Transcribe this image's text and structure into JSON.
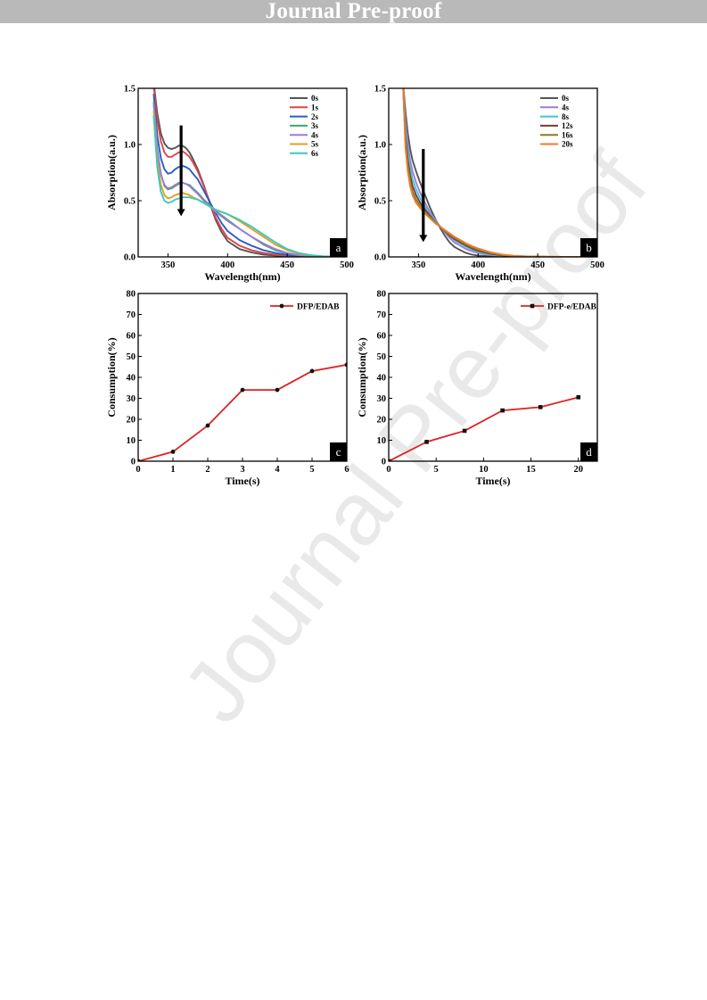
{
  "banner": {
    "title": "Journal Pre-proof"
  },
  "watermark": {
    "text": "Journal Pre-proof"
  },
  "chart_data": [
    {
      "id": "a",
      "panel_label": "a",
      "type": "line",
      "xlabel": "Wavelength(nm)",
      "ylabel": "Absorption(a.u.)",
      "xlim": [
        325,
        500
      ],
      "ylim": [
        0,
        1.5
      ],
      "xticks": [
        350,
        400,
        450,
        500
      ],
      "yticks": [
        0.0,
        0.5,
        1.0,
        1.5
      ],
      "legend": "top-right",
      "arrow": {
        "x": 361,
        "y_from": 1.17,
        "y_to": 0.37
      },
      "series": [
        {
          "name": "0s",
          "color": "#555555",
          "x": [
            338,
            341,
            344,
            347,
            350,
            353,
            356,
            359,
            362,
            365,
            368,
            371,
            375,
            380,
            385,
            390,
            395,
            400,
            410,
            420,
            430,
            440,
            450,
            460,
            470,
            480,
            490,
            500
          ],
          "y": [
            1.55,
            1.28,
            1.1,
            1.01,
            0.97,
            0.96,
            0.97,
            0.99,
            0.99,
            0.97,
            0.93,
            0.87,
            0.78,
            0.64,
            0.48,
            0.33,
            0.22,
            0.14,
            0.07,
            0.04,
            0.02,
            0.012,
            0.006,
            0.003,
            0.002,
            0.001,
            0.0005,
            0.0
          ]
        },
        {
          "name": "1s",
          "color": "#e04545",
          "x": [
            338,
            341,
            344,
            347,
            350,
            353,
            356,
            359,
            362,
            365,
            368,
            371,
            375,
            380,
            385,
            390,
            395,
            400,
            410,
            420,
            430,
            440,
            450,
            460,
            470,
            480,
            490,
            500
          ],
          "y": [
            1.52,
            1.22,
            1.03,
            0.93,
            0.89,
            0.89,
            0.91,
            0.93,
            0.94,
            0.92,
            0.89,
            0.84,
            0.76,
            0.63,
            0.49,
            0.35,
            0.25,
            0.17,
            0.1,
            0.06,
            0.035,
            0.02,
            0.01,
            0.005,
            0.003,
            0.002,
            0.001,
            0.0
          ]
        },
        {
          "name": "2s",
          "color": "#2a5cc8",
          "x": [
            338,
            341,
            344,
            347,
            350,
            353,
            356,
            359,
            362,
            365,
            368,
            371,
            375,
            380,
            385,
            390,
            395,
            400,
            410,
            420,
            430,
            440,
            450,
            460,
            470,
            480,
            490,
            500
          ],
          "y": [
            1.45,
            1.08,
            0.88,
            0.78,
            0.74,
            0.75,
            0.78,
            0.8,
            0.81,
            0.8,
            0.78,
            0.74,
            0.69,
            0.59,
            0.49,
            0.39,
            0.3,
            0.23,
            0.15,
            0.1,
            0.06,
            0.035,
            0.018,
            0.008,
            0.004,
            0.002,
            0.001,
            0.0
          ]
        },
        {
          "name": "3s",
          "color": "#3aa86a",
          "x": [
            338,
            341,
            344,
            347,
            350,
            353,
            356,
            359,
            362,
            365,
            368,
            371,
            375,
            380,
            385,
            390,
            395,
            400,
            410,
            420,
            430,
            440,
            450,
            460,
            470,
            480,
            490,
            500
          ],
          "y": [
            1.38,
            0.96,
            0.74,
            0.63,
            0.6,
            0.61,
            0.63,
            0.65,
            0.66,
            0.65,
            0.64,
            0.61,
            0.57,
            0.51,
            0.46,
            0.41,
            0.37,
            0.33,
            0.25,
            0.18,
            0.11,
            0.06,
            0.03,
            0.014,
            0.006,
            0.003,
            0.001,
            0.0
          ]
        },
        {
          "name": "4s",
          "color": "#a07ad8",
          "x": [
            338,
            341,
            344,
            347,
            350,
            353,
            356,
            359,
            362,
            365,
            368,
            371,
            375,
            380,
            385,
            390,
            395,
            400,
            410,
            420,
            430,
            440,
            450,
            460,
            470,
            480,
            490,
            500
          ],
          "y": [
            1.36,
            0.95,
            0.74,
            0.64,
            0.61,
            0.62,
            0.64,
            0.66,
            0.66,
            0.65,
            0.63,
            0.6,
            0.56,
            0.5,
            0.45,
            0.4,
            0.36,
            0.32,
            0.25,
            0.18,
            0.12,
            0.07,
            0.035,
            0.016,
            0.007,
            0.003,
            0.001,
            0.0
          ]
        },
        {
          "name": "5s",
          "color": "#e0a020",
          "x": [
            338,
            341,
            344,
            347,
            350,
            353,
            356,
            359,
            362,
            365,
            368,
            371,
            375,
            380,
            385,
            390,
            395,
            400,
            410,
            420,
            430,
            440,
            450,
            460,
            470,
            480,
            490,
            500
          ],
          "y": [
            1.3,
            0.86,
            0.64,
            0.55,
            0.52,
            0.53,
            0.55,
            0.56,
            0.57,
            0.56,
            0.55,
            0.53,
            0.51,
            0.48,
            0.45,
            0.42,
            0.4,
            0.38,
            0.32,
            0.25,
            0.18,
            0.11,
            0.06,
            0.028,
            0.012,
            0.005,
            0.002,
            0.0
          ]
        },
        {
          "name": "6s",
          "color": "#3cc8c0",
          "x": [
            338,
            341,
            344,
            347,
            350,
            353,
            356,
            359,
            362,
            365,
            368,
            371,
            375,
            380,
            385,
            390,
            395,
            400,
            410,
            420,
            430,
            440,
            450,
            460,
            470,
            480,
            490,
            500
          ],
          "y": [
            1.26,
            0.8,
            0.58,
            0.5,
            0.48,
            0.49,
            0.51,
            0.52,
            0.53,
            0.53,
            0.53,
            0.52,
            0.51,
            0.48,
            0.45,
            0.42,
            0.4,
            0.38,
            0.33,
            0.27,
            0.2,
            0.13,
            0.07,
            0.034,
            0.015,
            0.006,
            0.002,
            0.0
          ]
        }
      ]
    },
    {
      "id": "b",
      "panel_label": "b",
      "type": "line",
      "xlabel": "Wavelength(nm)",
      "ylabel": "Absorption(a.u.)",
      "xlim": [
        325,
        500
      ],
      "ylim": [
        0,
        1.5
      ],
      "xticks": [
        350,
        400,
        450,
        500
      ],
      "yticks": [
        0.0,
        0.5,
        1.0,
        1.5
      ],
      "legend": "top-right",
      "arrow": {
        "x": 354,
        "y_from": 0.96,
        "y_to": 0.14
      },
      "series": [
        {
          "name": "0s",
          "color": "#555555",
          "x": [
            337,
            339,
            341,
            343,
            345,
            348,
            351,
            354,
            357,
            360,
            364,
            368,
            372,
            376,
            380,
            385,
            390,
            395,
            400,
            410,
            420,
            430,
            440,
            450,
            460,
            470,
            480,
            490,
            500
          ],
          "y": [
            1.55,
            1.3,
            1.1,
            0.96,
            0.86,
            0.76,
            0.67,
            0.59,
            0.51,
            0.43,
            0.34,
            0.26,
            0.19,
            0.13,
            0.09,
            0.06,
            0.035,
            0.02,
            0.012,
            0.005,
            0.002,
            0.001,
            0.0005,
            0.0,
            0.0,
            0.0,
            0.0,
            0.0,
            0.0
          ]
        },
        {
          "name": "4s",
          "color": "#a07ad8",
          "x": [
            337,
            339,
            341,
            343,
            345,
            348,
            351,
            354,
            357,
            360,
            364,
            368,
            372,
            376,
            380,
            385,
            390,
            395,
            400,
            410,
            420,
            430,
            440,
            450,
            460,
            470,
            480,
            490,
            500
          ],
          "y": [
            1.55,
            1.22,
            1.0,
            0.86,
            0.76,
            0.66,
            0.58,
            0.51,
            0.45,
            0.39,
            0.33,
            0.27,
            0.22,
            0.17,
            0.13,
            0.1,
            0.07,
            0.05,
            0.035,
            0.017,
            0.008,
            0.004,
            0.002,
            0.001,
            0.0005,
            0.0,
            0.0,
            0.0,
            0.0
          ]
        },
        {
          "name": "8s",
          "color": "#3cc8d8",
          "x": [
            337,
            339,
            341,
            343,
            345,
            348,
            351,
            354,
            357,
            360,
            364,
            368,
            372,
            376,
            380,
            385,
            390,
            395,
            400,
            410,
            420,
            430,
            440,
            450,
            460,
            470,
            480,
            490,
            500
          ],
          "y": [
            1.55,
            1.15,
            0.93,
            0.79,
            0.69,
            0.6,
            0.53,
            0.47,
            0.42,
            0.37,
            0.32,
            0.27,
            0.23,
            0.19,
            0.15,
            0.12,
            0.09,
            0.065,
            0.045,
            0.022,
            0.01,
            0.005,
            0.002,
            0.001,
            0.0005,
            0.0,
            0.0,
            0.0,
            0.0
          ]
        },
        {
          "name": "12s",
          "color": "#7a3a3a",
          "x": [
            337,
            339,
            341,
            343,
            345,
            348,
            351,
            354,
            357,
            360,
            364,
            368,
            372,
            376,
            380,
            385,
            390,
            395,
            400,
            410,
            420,
            430,
            440,
            450,
            460,
            470,
            480,
            490,
            500
          ],
          "y": [
            1.55,
            1.08,
            0.86,
            0.72,
            0.63,
            0.55,
            0.49,
            0.44,
            0.4,
            0.36,
            0.31,
            0.27,
            0.23,
            0.19,
            0.16,
            0.13,
            0.1,
            0.075,
            0.055,
            0.028,
            0.013,
            0.006,
            0.003,
            0.0015,
            0.0007,
            0.0,
            0.0,
            0.0,
            0.0
          ]
        },
        {
          "name": "16s",
          "color": "#808020",
          "x": [
            337,
            339,
            341,
            343,
            345,
            348,
            351,
            354,
            357,
            360,
            364,
            368,
            372,
            376,
            380,
            385,
            390,
            395,
            400,
            410,
            420,
            430,
            440,
            450,
            460,
            470,
            480,
            490,
            500
          ],
          "y": [
            1.55,
            1.03,
            0.81,
            0.67,
            0.58,
            0.51,
            0.46,
            0.42,
            0.38,
            0.35,
            0.31,
            0.27,
            0.23,
            0.2,
            0.17,
            0.14,
            0.11,
            0.085,
            0.065,
            0.035,
            0.017,
            0.008,
            0.004,
            0.002,
            0.001,
            0.0,
            0.0,
            0.0,
            0.0
          ]
        },
        {
          "name": "20s",
          "color": "#f07a30",
          "x": [
            337,
            339,
            341,
            343,
            345,
            348,
            351,
            354,
            357,
            360,
            364,
            368,
            372,
            376,
            380,
            385,
            390,
            395,
            400,
            410,
            420,
            430,
            440,
            450,
            460,
            470,
            480,
            490,
            500
          ],
          "y": [
            1.55,
            0.98,
            0.76,
            0.63,
            0.55,
            0.48,
            0.44,
            0.4,
            0.37,
            0.34,
            0.3,
            0.27,
            0.24,
            0.21,
            0.18,
            0.15,
            0.12,
            0.095,
            0.075,
            0.042,
            0.021,
            0.01,
            0.005,
            0.0025,
            0.001,
            0.0,
            0.0,
            0.0,
            0.0
          ]
        }
      ]
    },
    {
      "id": "c",
      "panel_label": "c",
      "type": "line",
      "xlabel": "Time(s)",
      "ylabel": "Consumption(%)",
      "xlim": [
        0,
        6
      ],
      "ylim": [
        0,
        80
      ],
      "xticks": [
        0,
        1,
        2,
        3,
        4,
        5,
        6
      ],
      "yticks": [
        0,
        10,
        20,
        30,
        40,
        50,
        60,
        70,
        80
      ],
      "legend": "top-right",
      "marker": "circle",
      "series": [
        {
          "name": "DFP/EDAB",
          "color": "#e02020",
          "x": [
            0,
            1,
            2,
            3,
            4,
            5,
            6
          ],
          "y": [
            0,
            4.5,
            17,
            34,
            34,
            43,
            46
          ]
        }
      ]
    },
    {
      "id": "d",
      "panel_label": "d",
      "type": "line",
      "xlabel": "Time(s)",
      "ylabel": "Consumption(%)",
      "xlim": [
        0,
        22
      ],
      "ylim": [
        0,
        80
      ],
      "xticks": [
        0,
        5,
        10,
        15,
        20
      ],
      "yticks": [
        0,
        10,
        20,
        30,
        40,
        50,
        60,
        70,
        80
      ],
      "legend": "top-right",
      "marker": "square",
      "series": [
        {
          "name": "DFP-e/EDAB",
          "color": "#e02020",
          "x": [
            0,
            4,
            8,
            12,
            16,
            20
          ],
          "y": [
            0,
            9.2,
            14.5,
            24.2,
            25.8,
            30.5
          ]
        }
      ]
    }
  ]
}
